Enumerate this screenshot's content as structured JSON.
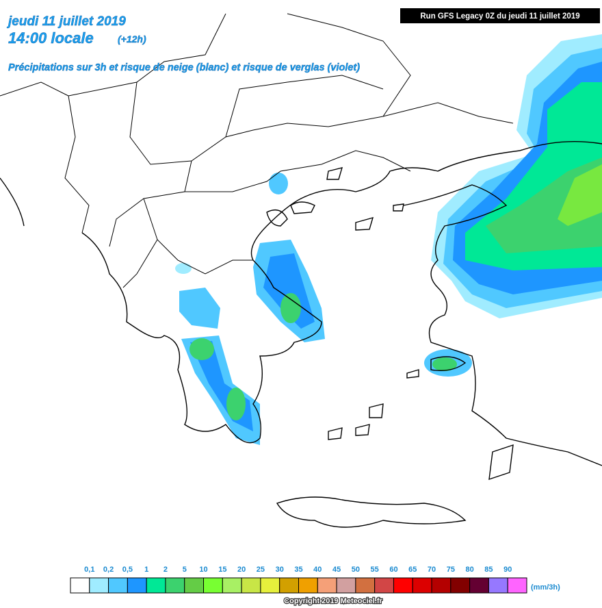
{
  "header": {
    "date": "jeudi 11 juillet 2019",
    "time": "14:00 locale",
    "offset": "(+12h)",
    "description": "Précipitations sur 3h et risque de neige (blanc) et risque de verglas (violet)",
    "run": "Run GFS Legacy 0Z du jeudi 11 juillet 2019"
  },
  "legend": {
    "labels": [
      "0,1",
      "0,2",
      "0,5",
      "1",
      "2",
      "5",
      "10",
      "15",
      "20",
      "25",
      "30",
      "35",
      "40",
      "45",
      "50",
      "55",
      "60",
      "65",
      "70",
      "75",
      "80",
      "85",
      "90"
    ],
    "colors": [
      "#ffffff",
      "#a0ecff",
      "#50c8ff",
      "#1e96ff",
      "#00e896",
      "#3cd26e",
      "#64cc46",
      "#78ff32",
      "#a8f064",
      "#c8e646",
      "#e6f03c",
      "#d2a000",
      "#f0a000",
      "#f5a078",
      "#d2a0a0",
      "#d27040",
      "#d24646",
      "#ff0000",
      "#dc0000",
      "#b40000",
      "#820000",
      "#640032",
      "#9678ff",
      "#ff64ff"
    ],
    "unit": "(mm/3h)"
  },
  "footer": {
    "copyright": "Copyright 2019 Meteociel.fr"
  }
}
